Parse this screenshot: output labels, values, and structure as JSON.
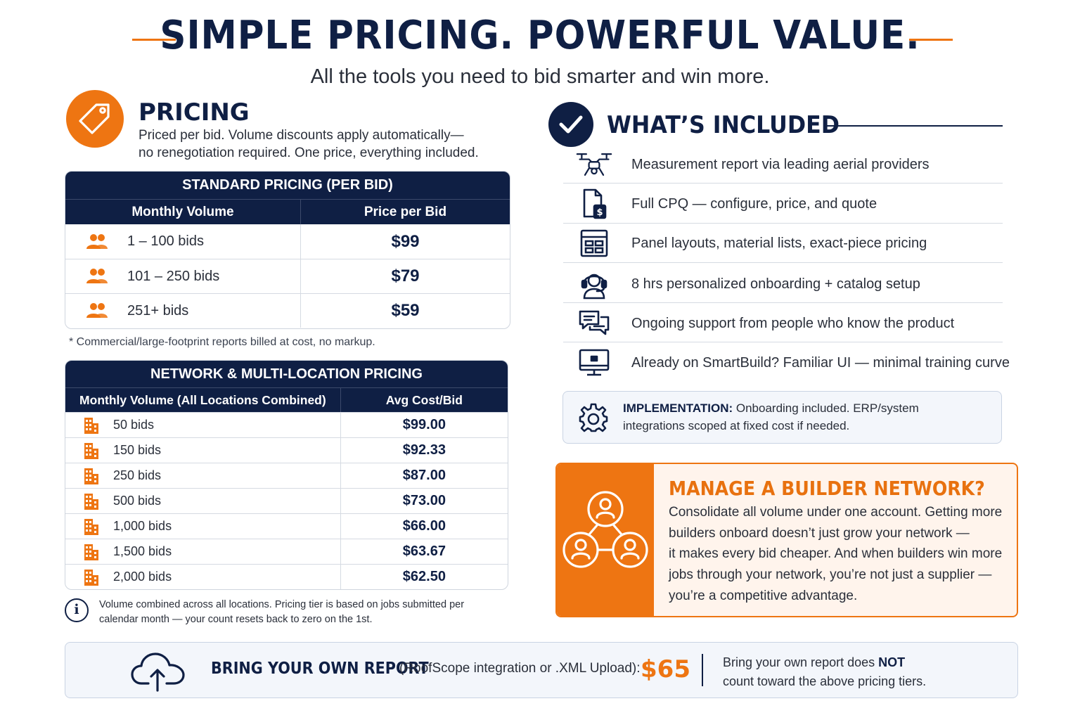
{
  "header": {
    "title": "SIMPLE PRICING. POWERFUL VALUE.",
    "subtitle": "All the tools you need to bid smarter and win more."
  },
  "pricing": {
    "icon": "price-tag-icon",
    "heading": "PRICING",
    "description_line1": "Priced per bid. Volume discounts apply automatically—",
    "description_line2": "no renegotiation required. One price, everything included."
  },
  "standard_table": {
    "title": "STANDARD PRICING (PER BID)",
    "col_volume": "Monthly Volume",
    "col_price": "Price per Bid",
    "rows": [
      {
        "volume": "1 – 100 bids",
        "price": "$99"
      },
      {
        "volume": "101 – 250 bids",
        "price": "$79"
      },
      {
        "volume": "251+ bids",
        "price": "$59"
      }
    ],
    "footnote": "* Commercial/large-footprint reports billed at cost, no markup."
  },
  "network_table": {
    "title": "NETWORK & MULTI-LOCATION PRICING",
    "col_volume": "Monthly Volume (All Locations Combined)",
    "col_price": "Avg Cost/Bid",
    "rows": [
      {
        "volume": "50 bids",
        "price": "$99.00"
      },
      {
        "volume": "150 bids",
        "price": "$92.33"
      },
      {
        "volume": "250 bids",
        "price": "$87.00"
      },
      {
        "volume": "500 bids",
        "price": "$73.00"
      },
      {
        "volume": "1,000 bids",
        "price": "$66.00"
      },
      {
        "volume": "1,500 bids",
        "price": "$63.67"
      },
      {
        "volume": "2,000 bids",
        "price": "$62.50"
      }
    ],
    "info_line1": "Volume combined across all locations. Pricing tier is based on jobs submitted per",
    "info_line2": "calendar month — your count resets back to zero on the 1st."
  },
  "included": {
    "heading": "WHAT’S INCLUDED",
    "items": [
      {
        "icon": "drone-icon",
        "text": "Measurement report via leading aerial providers"
      },
      {
        "icon": "document-dollar-icon",
        "text": "Full CPQ — configure, price, and quote"
      },
      {
        "icon": "panel-layout-icon",
        "text": "Panel layouts, material lists, exact-piece pricing"
      },
      {
        "icon": "headset-person-icon",
        "text": "8 hrs personalized onboarding + catalog setup"
      },
      {
        "icon": "chat-bubbles-icon",
        "text": "Ongoing support from people who know the product"
      },
      {
        "icon": "monitor-icon",
        "text": "Already on SmartBuild? Familiar UI — minimal training curve"
      }
    ]
  },
  "implementation": {
    "label": "IMPLEMENTATION:",
    "line1": "Onboarding included. ERP/system",
    "line2": "integrations scoped at fixed cost if needed."
  },
  "network_callout": {
    "heading": "MANAGE A BUILDER NETWORK?",
    "lines": [
      "Consolidate all volume under one account. Getting more",
      "builders onboard doesn’t just grow your network —",
      "it makes every bid cheaper. And when builders win more",
      "jobs through your network, you’re not just a supplier —",
      "you’re a competitive advantage."
    ]
  },
  "byor": {
    "label": "BRING YOUR OWN REPORT",
    "note": "(RoofScope integration or .XML Upload):",
    "price": "$65",
    "side_line1_prefix": "Bring your own report does ",
    "side_line1_bold": "NOT",
    "side_line2": "count toward the above pricing tiers."
  },
  "colors": {
    "navy": "#0f1f44",
    "orange": "#ee7512"
  }
}
